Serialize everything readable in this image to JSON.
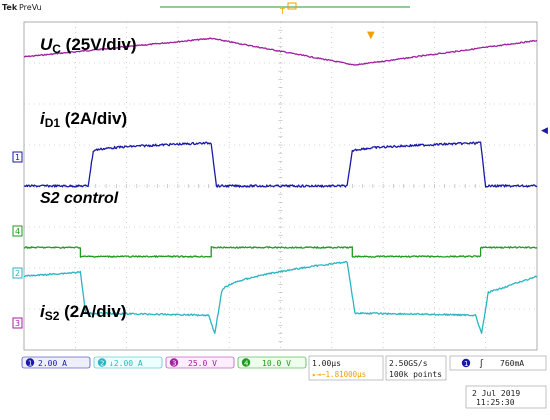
{
  "header": {
    "brand": "Tek",
    "mode": "PreVu"
  },
  "labels": {
    "uc_main": "U",
    "uc_sub": "C",
    "uc_scale": " (25V/div)",
    "id1_main": "i",
    "id1_sub": "D1",
    "id1_scale": " (2A/div)",
    "s2_control": "S2 control",
    "is2_main": "i",
    "is2_sub": "S2",
    "is2_scale": " (2A/div)"
  },
  "channel_markers": {
    "ch1": "1",
    "ch2": "2",
    "ch3": "3",
    "ch4": "4"
  },
  "status_bar": {
    "ch1": {
      "num": "1",
      "scale": "2.00 A"
    },
    "ch2": {
      "num": "2",
      "scale": "↓2.00 A"
    },
    "ch3": {
      "num": "3",
      "scale": "25.0 V"
    },
    "ch4": {
      "num": "4",
      "scale": "10.0 V"
    },
    "timebase": "1.00µs",
    "delay": "▸⇥−1.81000µs",
    "sample_rate": "2.50GS/s",
    "record_length": "100k points",
    "trigger": {
      "source": "1",
      "slope": "ʃ",
      "level": "760mA"
    },
    "date": "2 Jul  2019",
    "time": "11:25:30"
  },
  "colors": {
    "ch1": "#1a1aa8",
    "ch2": "#2ab5c0",
    "ch3": "#a020a0",
    "ch4": "#1f9a1f",
    "grid": "#b0b0b0",
    "accent": "#f0a000"
  },
  "chart_data": {
    "type": "line",
    "x_unit": "div",
    "xlim": [
      0,
      10
    ],
    "ylim": [
      -4,
      4
    ],
    "series": [
      {
        "name": "U",
        "channel": "ch3",
        "x": [
          0,
          3.65,
          6.45,
          10
        ],
        "y": [
          3.15,
          3.6,
          2.95,
          3.55
        ]
      },
      {
        "name": "i",
        "channel": "ch1",
        "x": [
          0,
          1.25,
          1.35,
          3.65,
          3.75,
          4.0,
          6.3,
          6.4,
          8.9,
          9.0,
          9.3,
          10
        ],
        "y": [
          0.0,
          0.0,
          0.85,
          1.05,
          0.0,
          0.0,
          0.0,
          0.85,
          1.05,
          0.0,
          0.0,
          0.0
        ]
      },
      {
        "name": "S2 control",
        "channel": "ch4",
        "x": [
          0,
          1.1,
          1.1,
          3.65,
          3.65,
          6.4,
          6.4,
          8.9,
          8.9,
          10
        ],
        "y": [
          -1.5,
          -1.5,
          -1.72,
          -1.72,
          -1.5,
          -1.5,
          -1.72,
          -1.72,
          -1.5,
          -1.5
        ]
      },
      {
        "name": "i",
        "channel": "ch2",
        "x": [
          0,
          1.1,
          1.2,
          3.6,
          3.72,
          3.85,
          6.3,
          6.45,
          8.8,
          8.92,
          9.05,
          10
        ],
        "y": [
          -2.2,
          -2.1,
          -3.1,
          -3.15,
          -3.6,
          -2.6,
          -1.85,
          -3.1,
          -3.15,
          -3.6,
          -2.6,
          -2.2
        ]
      }
    ]
  }
}
